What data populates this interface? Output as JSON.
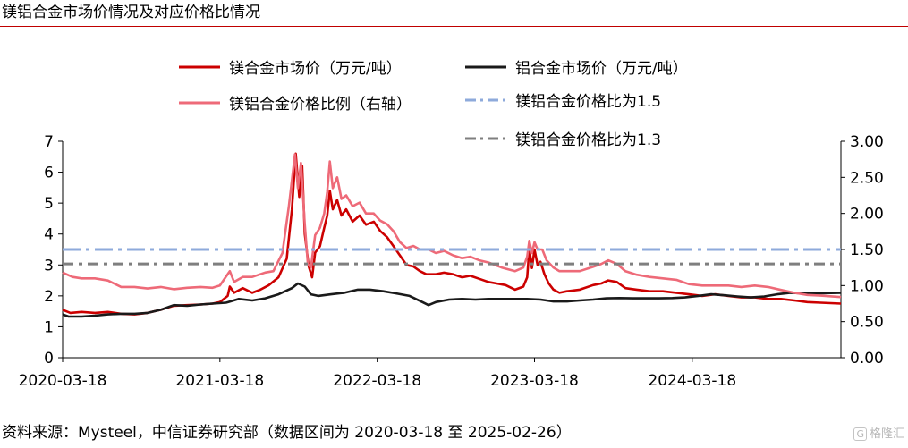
{
  "title": "镁铝合金市场价情况及对应价格比情况",
  "source": "资料来源：Mysteel，中信证券研究部（数据区间为 2020-03-18 至 2025-02-26）",
  "watermark": "格隆汇",
  "chart_data": {
    "type": "line",
    "title": "",
    "x_start": "2020-03-18",
    "x_end": "2025-02-26",
    "xticks": [
      "2020-03-18",
      "2021-03-18",
      "2022-03-18",
      "2023-03-18",
      "2024-03-18"
    ],
    "y_left": {
      "min": 0,
      "max": 7,
      "ticks": [
        "0",
        "1",
        "2",
        "3",
        "4",
        "5",
        "6",
        "7"
      ]
    },
    "y_right": {
      "min": 0,
      "max": 3,
      "ticks": [
        "0.00",
        "0.50",
        "1.00",
        "1.50",
        "2.00",
        "2.50",
        "3.00"
      ]
    },
    "legend": [
      {
        "name": "镁合金市场价（万元/吨）",
        "color": "#cc0000",
        "style": "solid"
      },
      {
        "name": "铝合金市场价（万元/吨）",
        "color": "#1a1a1a",
        "style": "solid"
      },
      {
        "name": "镁铝合金价格比例（右轴）",
        "color": "#ee6a78",
        "style": "solid"
      },
      {
        "name": "镁铝合金价格比为1.5",
        "color": "#8eaadb",
        "style": "dashdot"
      },
      {
        "name": "镁铝合金价格比为1.3",
        "color": "#7f7f7f",
        "style": "dashdot"
      }
    ],
    "series": [
      {
        "name": "镁合金市场价（万元/吨）",
        "axis": "left",
        "color": "#cc0000",
        "points": [
          [
            "2020-03-18",
            1.55
          ],
          [
            "2020-04-05",
            1.45
          ],
          [
            "2020-05-01",
            1.48
          ],
          [
            "2020-06-01",
            1.45
          ],
          [
            "2020-07-01",
            1.48
          ],
          [
            "2020-08-01",
            1.42
          ],
          [
            "2020-09-01",
            1.4
          ],
          [
            "2020-10-01",
            1.45
          ],
          [
            "2020-11-01",
            1.55
          ],
          [
            "2020-12-01",
            1.68
          ],
          [
            "2021-01-01",
            1.7
          ],
          [
            "2021-02-01",
            1.72
          ],
          [
            "2021-03-01",
            1.75
          ],
          [
            "2021-03-18",
            1.8
          ],
          [
            "2021-04-05",
            2.0
          ],
          [
            "2021-04-10",
            2.3
          ],
          [
            "2021-04-20",
            2.1
          ],
          [
            "2021-05-10",
            2.25
          ],
          [
            "2021-06-01",
            2.1
          ],
          [
            "2021-06-20",
            2.2
          ],
          [
            "2021-07-10",
            2.35
          ],
          [
            "2021-08-01",
            2.6
          ],
          [
            "2021-08-20",
            3.2
          ],
          [
            "2021-09-01",
            4.8
          ],
          [
            "2021-09-10",
            6.6
          ],
          [
            "2021-09-18",
            5.2
          ],
          [
            "2021-09-25",
            6.2
          ],
          [
            "2021-10-01",
            4.0
          ],
          [
            "2021-10-10",
            2.95
          ],
          [
            "2021-10-18",
            2.6
          ],
          [
            "2021-10-25",
            3.4
          ],
          [
            "2021-11-05",
            3.6
          ],
          [
            "2021-11-15",
            4.2
          ],
          [
            "2021-11-22",
            4.6
          ],
          [
            "2021-11-28",
            5.4
          ],
          [
            "2021-12-05",
            4.8
          ],
          [
            "2021-12-15",
            5.1
          ],
          [
            "2021-12-25",
            4.6
          ],
          [
            "2022-01-05",
            4.8
          ],
          [
            "2022-01-20",
            4.4
          ],
          [
            "2022-02-05",
            4.6
          ],
          [
            "2022-02-20",
            4.3
          ],
          [
            "2022-03-10",
            4.4
          ],
          [
            "2022-03-25",
            4.1
          ],
          [
            "2022-04-10",
            3.9
          ],
          [
            "2022-04-25",
            3.6
          ],
          [
            "2022-05-10",
            3.3
          ],
          [
            "2022-05-25",
            3.0
          ],
          [
            "2022-06-10",
            2.95
          ],
          [
            "2022-06-25",
            2.8
          ],
          [
            "2022-07-10",
            2.7
          ],
          [
            "2022-08-01",
            2.7
          ],
          [
            "2022-08-20",
            2.75
          ],
          [
            "2022-09-10",
            2.7
          ],
          [
            "2022-10-01",
            2.6
          ],
          [
            "2022-10-20",
            2.65
          ],
          [
            "2022-11-10",
            2.55
          ],
          [
            "2022-12-01",
            2.45
          ],
          [
            "2022-12-20",
            2.4
          ],
          [
            "2023-01-10",
            2.35
          ],
          [
            "2023-02-01",
            2.2
          ],
          [
            "2023-02-20",
            2.3
          ],
          [
            "2023-03-01",
            2.6
          ],
          [
            "2023-03-06",
            3.55
          ],
          [
            "2023-03-12",
            2.9
          ],
          [
            "2023-03-18",
            3.5
          ],
          [
            "2023-03-25",
            3.0
          ],
          [
            "2023-04-01",
            3.1
          ],
          [
            "2023-04-10",
            2.7
          ],
          [
            "2023-04-20",
            2.4
          ],
          [
            "2023-05-01",
            2.2
          ],
          [
            "2023-05-15",
            2.1
          ],
          [
            "2023-06-01",
            2.15
          ],
          [
            "2023-07-01",
            2.2
          ],
          [
            "2023-08-01",
            2.35
          ],
          [
            "2023-08-20",
            2.4
          ],
          [
            "2023-09-05",
            2.5
          ],
          [
            "2023-09-25",
            2.45
          ],
          [
            "2023-10-15",
            2.25
          ],
          [
            "2023-11-10",
            2.2
          ],
          [
            "2023-12-10",
            2.15
          ],
          [
            "2024-01-10",
            2.15
          ],
          [
            "2024-02-10",
            2.1
          ],
          [
            "2024-03-10",
            2.05
          ],
          [
            "2024-04-10",
            2.0
          ],
          [
            "2024-05-10",
            2.05
          ],
          [
            "2024-06-10",
            2.0
          ],
          [
            "2024-07-10",
            1.95
          ],
          [
            "2024-08-10",
            1.95
          ],
          [
            "2024-09-10",
            1.9
          ],
          [
            "2024-10-10",
            1.9
          ],
          [
            "2024-11-10",
            1.85
          ],
          [
            "2024-12-10",
            1.8
          ],
          [
            "2025-01-10",
            1.78
          ],
          [
            "2025-02-26",
            1.75
          ]
        ]
      },
      {
        "name": "铝合金市场价（万元/吨）",
        "axis": "left",
        "color": "#1a1a1a",
        "points": [
          [
            "2020-03-18",
            1.4
          ],
          [
            "2020-04-01",
            1.33
          ],
          [
            "2020-05-01",
            1.33
          ],
          [
            "2020-06-01",
            1.36
          ],
          [
            "2020-07-01",
            1.4
          ],
          [
            "2020-08-01",
            1.42
          ],
          [
            "2020-09-01",
            1.42
          ],
          [
            "2020-10-01",
            1.45
          ],
          [
            "2020-11-01",
            1.55
          ],
          [
            "2020-12-01",
            1.7
          ],
          [
            "2021-01-01",
            1.68
          ],
          [
            "2021-02-01",
            1.72
          ],
          [
            "2021-03-01",
            1.75
          ],
          [
            "2021-04-01",
            1.78
          ],
          [
            "2021-05-01",
            1.9
          ],
          [
            "2021-06-01",
            1.85
          ],
          [
            "2021-07-01",
            1.92
          ],
          [
            "2021-08-01",
            2.05
          ],
          [
            "2021-09-01",
            2.25
          ],
          [
            "2021-09-15",
            2.4
          ],
          [
            "2021-10-01",
            2.3
          ],
          [
            "2021-10-15",
            2.05
          ],
          [
            "2021-11-01",
            2.0
          ],
          [
            "2021-12-01",
            2.05
          ],
          [
            "2022-01-01",
            2.1
          ],
          [
            "2022-02-01",
            2.2
          ],
          [
            "2022-03-01",
            2.2
          ],
          [
            "2022-04-01",
            2.15
          ],
          [
            "2022-05-01",
            2.08
          ],
          [
            "2022-06-01",
            2.0
          ],
          [
            "2022-07-01",
            1.8
          ],
          [
            "2022-07-15",
            1.7
          ],
          [
            "2022-08-01",
            1.8
          ],
          [
            "2022-09-01",
            1.88
          ],
          [
            "2022-10-01",
            1.9
          ],
          [
            "2022-11-01",
            1.88
          ],
          [
            "2022-12-01",
            1.9
          ],
          [
            "2023-01-01",
            1.9
          ],
          [
            "2023-02-01",
            1.9
          ],
          [
            "2023-03-01",
            1.9
          ],
          [
            "2023-04-01",
            1.88
          ],
          [
            "2023-05-01",
            1.82
          ],
          [
            "2023-06-01",
            1.82
          ],
          [
            "2023-07-01",
            1.85
          ],
          [
            "2023-08-01",
            1.88
          ],
          [
            "2023-09-01",
            1.92
          ],
          [
            "2023-10-01",
            1.93
          ],
          [
            "2023-11-01",
            1.92
          ],
          [
            "2023-12-01",
            1.92
          ],
          [
            "2024-01-01",
            1.92
          ],
          [
            "2024-02-01",
            1.93
          ],
          [
            "2024-03-01",
            1.95
          ],
          [
            "2024-04-01",
            2.0
          ],
          [
            "2024-05-01",
            2.05
          ],
          [
            "2024-06-01",
            2.02
          ],
          [
            "2024-07-01",
            1.98
          ],
          [
            "2024-08-01",
            1.95
          ],
          [
            "2024-09-01",
            1.98
          ],
          [
            "2024-10-01",
            2.05
          ],
          [
            "2024-11-01",
            2.1
          ],
          [
            "2024-12-01",
            2.08
          ],
          [
            "2025-01-01",
            2.08
          ],
          [
            "2025-02-26",
            2.1
          ]
        ]
      },
      {
        "name": "镁铝合金价格比例（右轴）",
        "axis": "right",
        "color": "#ee6a78",
        "points": [
          [
            "2020-03-18",
            1.18
          ],
          [
            "2020-04-10",
            1.12
          ],
          [
            "2020-05-01",
            1.1
          ],
          [
            "2020-06-01",
            1.1
          ],
          [
            "2020-07-01",
            1.07
          ],
          [
            "2020-08-01",
            0.98
          ],
          [
            "2020-09-01",
            0.98
          ],
          [
            "2020-10-01",
            0.96
          ],
          [
            "2020-11-01",
            0.98
          ],
          [
            "2020-12-01",
            0.95
          ],
          [
            "2021-01-01",
            0.97
          ],
          [
            "2021-02-01",
            0.98
          ],
          [
            "2021-03-01",
            0.97
          ],
          [
            "2021-03-18",
            1.0
          ],
          [
            "2021-04-10",
            1.2
          ],
          [
            "2021-04-20",
            1.05
          ],
          [
            "2021-05-10",
            1.12
          ],
          [
            "2021-06-01",
            1.12
          ],
          [
            "2021-07-01",
            1.18
          ],
          [
            "2021-07-20",
            1.2
          ],
          [
            "2021-08-10",
            1.45
          ],
          [
            "2021-08-25",
            2.1
          ],
          [
            "2021-09-08",
            2.82
          ],
          [
            "2021-09-15",
            2.35
          ],
          [
            "2021-09-22",
            2.7
          ],
          [
            "2021-10-01",
            1.85
          ],
          [
            "2021-10-08",
            1.3
          ],
          [
            "2021-10-15",
            1.25
          ],
          [
            "2021-10-25",
            1.7
          ],
          [
            "2021-11-05",
            1.8
          ],
          [
            "2021-11-15",
            2.0
          ],
          [
            "2021-11-22",
            2.3
          ],
          [
            "2021-11-28",
            2.72
          ],
          [
            "2021-12-05",
            2.35
          ],
          [
            "2021-12-15",
            2.5
          ],
          [
            "2021-12-25",
            2.2
          ],
          [
            "2022-01-05",
            2.25
          ],
          [
            "2022-01-20",
            2.1
          ],
          [
            "2022-02-05",
            2.15
          ],
          [
            "2022-02-20",
            2.0
          ],
          [
            "2022-03-10",
            2.0
          ],
          [
            "2022-03-25",
            1.9
          ],
          [
            "2022-04-10",
            1.85
          ],
          [
            "2022-04-25",
            1.75
          ],
          [
            "2022-05-10",
            1.6
          ],
          [
            "2022-05-25",
            1.52
          ],
          [
            "2022-06-10",
            1.55
          ],
          [
            "2022-06-25",
            1.5
          ],
          [
            "2022-07-15",
            1.5
          ],
          [
            "2022-08-01",
            1.45
          ],
          [
            "2022-08-20",
            1.48
          ],
          [
            "2022-09-10",
            1.42
          ],
          [
            "2022-10-01",
            1.38
          ],
          [
            "2022-10-20",
            1.4
          ],
          [
            "2022-11-10",
            1.35
          ],
          [
            "2022-12-01",
            1.32
          ],
          [
            "2023-01-01",
            1.25
          ],
          [
            "2023-02-01",
            1.2
          ],
          [
            "2023-02-20",
            1.25
          ],
          [
            "2023-03-01",
            1.4
          ],
          [
            "2023-03-06",
            1.62
          ],
          [
            "2023-03-12",
            1.45
          ],
          [
            "2023-03-18",
            1.6
          ],
          [
            "2023-03-25",
            1.5
          ],
          [
            "2023-04-05",
            1.5
          ],
          [
            "2023-04-15",
            1.35
          ],
          [
            "2023-05-01",
            1.25
          ],
          [
            "2023-05-15",
            1.2
          ],
          [
            "2023-06-01",
            1.2
          ],
          [
            "2023-07-01",
            1.2
          ],
          [
            "2023-08-01",
            1.26
          ],
          [
            "2023-08-20",
            1.3
          ],
          [
            "2023-09-05",
            1.35
          ],
          [
            "2023-09-25",
            1.3
          ],
          [
            "2023-10-15",
            1.2
          ],
          [
            "2023-11-10",
            1.15
          ],
          [
            "2023-12-10",
            1.12
          ],
          [
            "2024-01-10",
            1.1
          ],
          [
            "2024-02-10",
            1.08
          ],
          [
            "2024-03-10",
            1.02
          ],
          [
            "2024-04-10",
            1.0
          ],
          [
            "2024-05-10",
            1.0
          ],
          [
            "2024-06-10",
            1.0
          ],
          [
            "2024-07-10",
            0.98
          ],
          [
            "2024-08-10",
            1.0
          ],
          [
            "2024-09-10",
            0.98
          ],
          [
            "2024-10-10",
            0.94
          ],
          [
            "2024-11-10",
            0.9
          ],
          [
            "2024-12-10",
            0.87
          ],
          [
            "2025-01-10",
            0.86
          ],
          [
            "2025-02-26",
            0.84
          ]
        ]
      },
      {
        "name": "镁铝合金价格比为1.5",
        "axis": "right",
        "color": "#8eaadb",
        "constant": 1.5
      },
      {
        "name": "镁铝合金价格比为1.3",
        "axis": "right",
        "color": "#7f7f7f",
        "constant": 1.3
      }
    ]
  }
}
